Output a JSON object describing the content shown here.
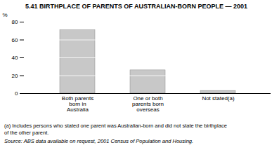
{
  "chart_data": {
    "type": "bar",
    "title": "5.41  BIRTHPLACE OF PARENTS OF AUSTRALIAN-BORN PEOPLE — 2001",
    "categories": [
      "Both parents\nborn in\nAustralia",
      "One or both\nparents born\noverseas",
      "Not stated(a)"
    ],
    "values": [
      71,
      26,
      3
    ],
    "color": "#c8c8c8",
    "ylabel": "%",
    "ylim": [
      0,
      80
    ],
    "yticks": [
      0,
      20,
      40,
      60,
      80
    ],
    "grid": true,
    "annotations": [
      "(a) Includes persons who stated one parent was Australian-born and did not state the birthplace",
      "of the other parent.",
      "Source: ABS data available on request, 2001 Census of Population and Housing."
    ]
  }
}
